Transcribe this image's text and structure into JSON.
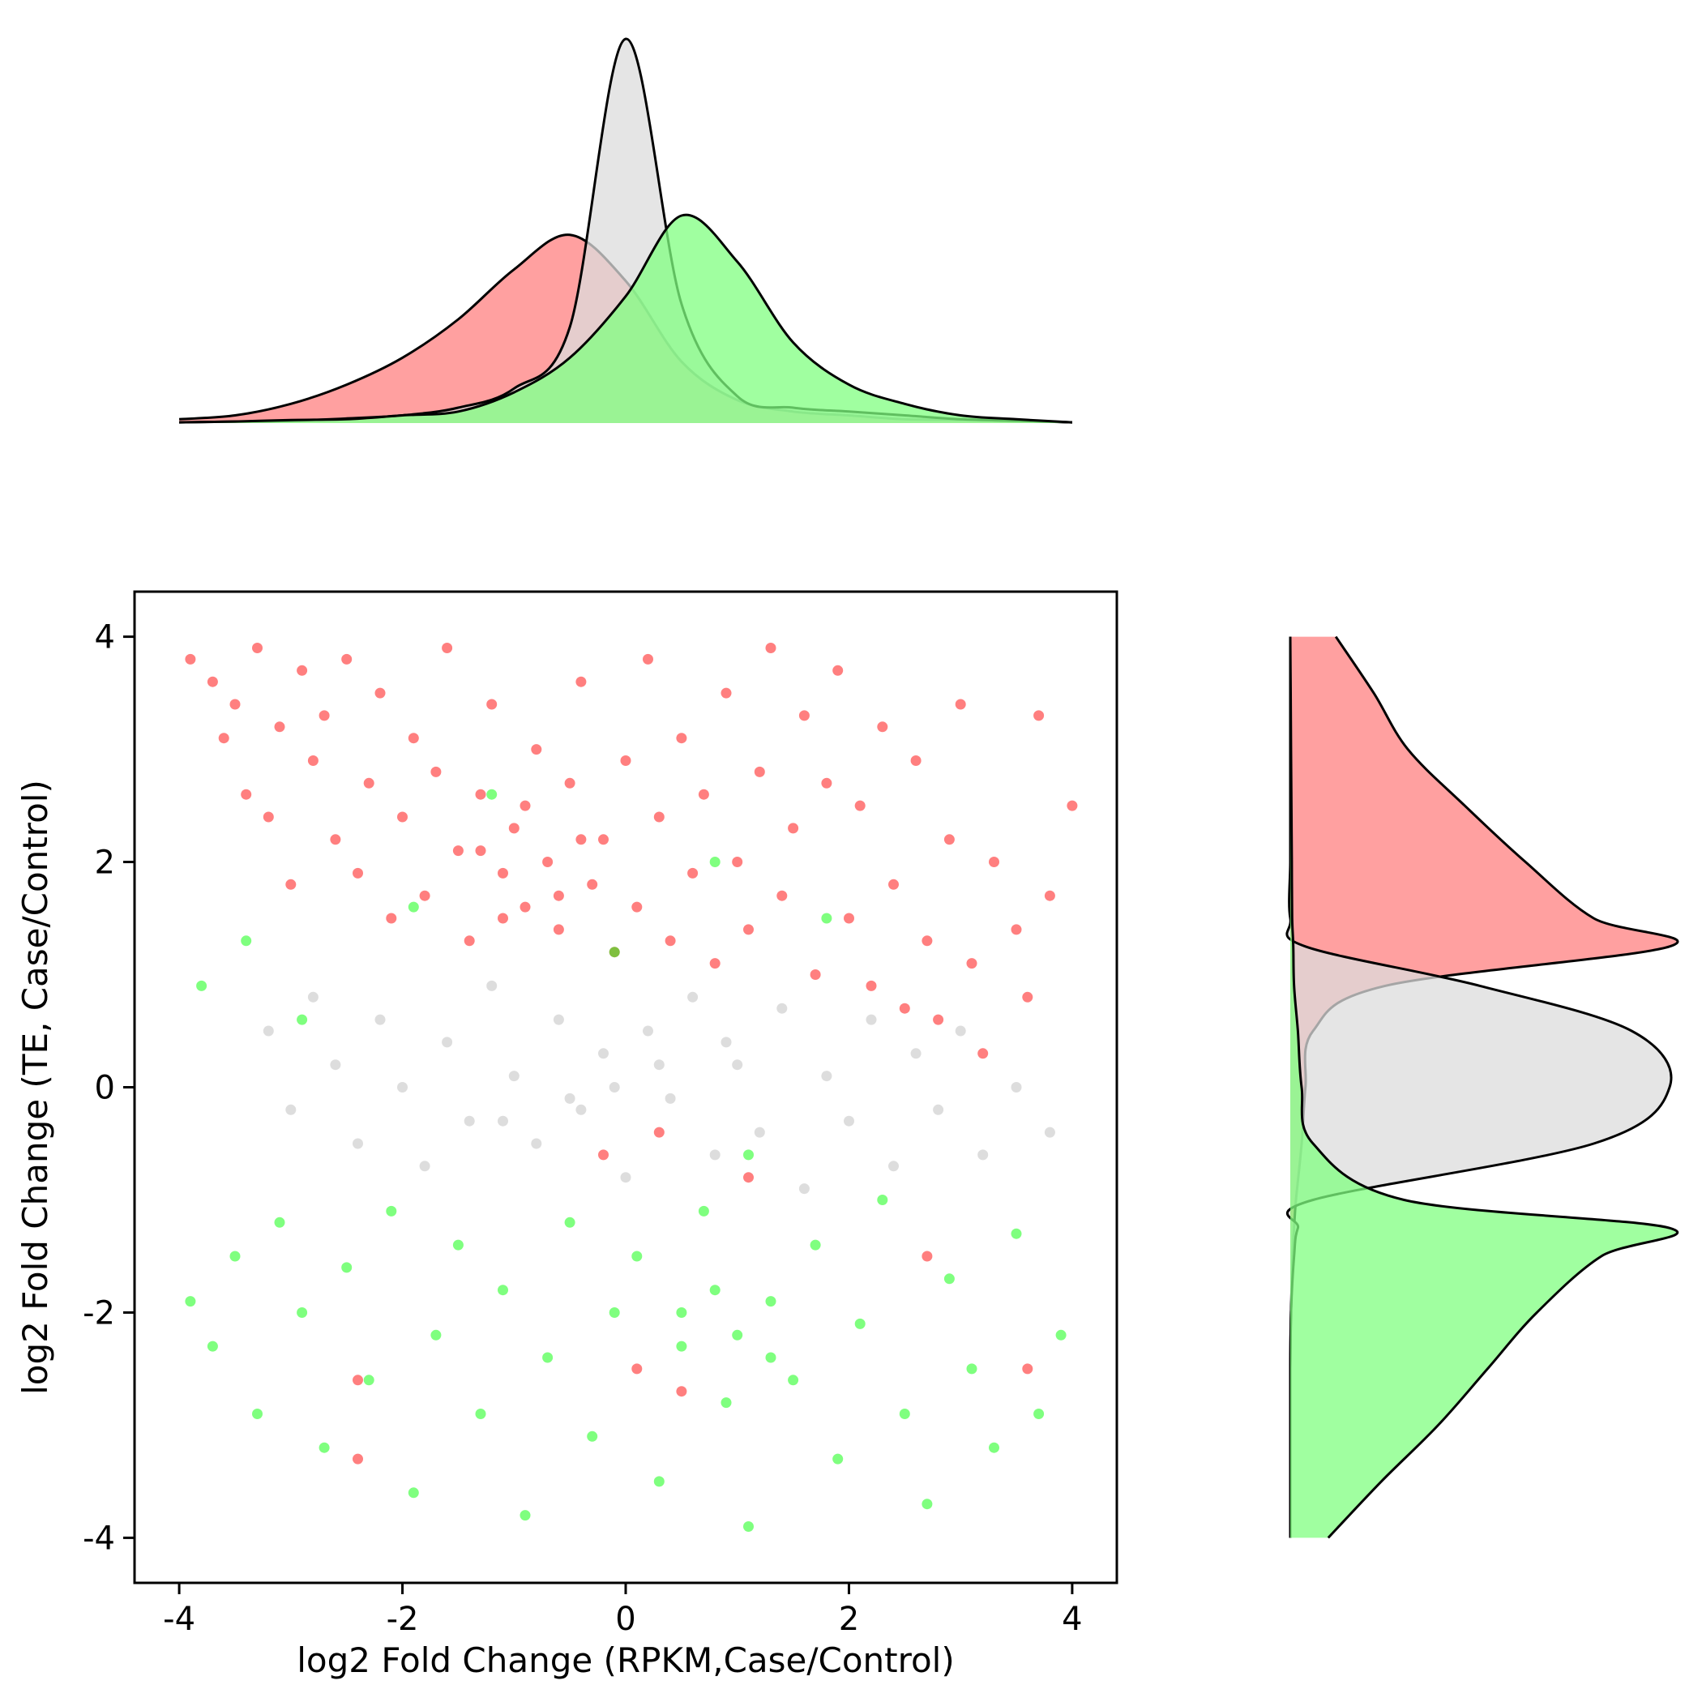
{
  "chart_data": {
    "type": "scatter",
    "title": "",
    "xlabel": "log2 Fold Change (RPKM,Case/Control)",
    "ylabel": "log2 Fold Change (TE, Case/Control)",
    "xlim": [
      -4.4,
      4.4
    ],
    "ylim": [
      -4.4,
      4.4
    ],
    "xticks": [
      -4,
      -2,
      0,
      2,
      4
    ],
    "yticks": [
      -4,
      -2,
      0,
      2,
      4
    ],
    "xtick_labels": [
      "-4",
      "-2",
      "0",
      "2",
      "4"
    ],
    "ytick_labels": [
      "-4",
      "-2",
      "0",
      "2",
      "4"
    ],
    "grid": false,
    "legend": "none",
    "series": [
      {
        "color": "#ff0000",
        "fill": "#ff8080",
        "points": [
          [
            -3.9,
            3.8
          ],
          [
            -3.7,
            3.6
          ],
          [
            -3.6,
            3.1
          ],
          [
            -3.5,
            3.4
          ],
          [
            -3.4,
            2.6
          ],
          [
            -3.3,
            3.9
          ],
          [
            -3.2,
            2.4
          ],
          [
            -3.1,
            3.2
          ],
          [
            -3.0,
            1.8
          ],
          [
            -2.9,
            3.7
          ],
          [
            -2.8,
            2.9
          ],
          [
            -2.7,
            3.3
          ],
          [
            -2.6,
            2.2
          ],
          [
            -2.5,
            3.8
          ],
          [
            -2.4,
            1.9
          ],
          [
            -2.3,
            2.7
          ],
          [
            -2.2,
            3.5
          ],
          [
            -2.1,
            1.5
          ],
          [
            -2.0,
            2.4
          ],
          [
            -1.9,
            3.1
          ],
          [
            -1.8,
            1.7
          ],
          [
            -1.7,
            2.8
          ],
          [
            -1.6,
            3.9
          ],
          [
            -1.5,
            2.1
          ],
          [
            -1.4,
            1.3
          ],
          [
            -1.3,
            2.6
          ],
          [
            -1.2,
            3.4
          ],
          [
            -1.1,
            1.9
          ],
          [
            -1.0,
            2.3
          ],
          [
            -0.9,
            1.6
          ],
          [
            -0.8,
            3.0
          ],
          [
            -0.7,
            2.0
          ],
          [
            -0.6,
            1.4
          ],
          [
            -0.5,
            2.7
          ],
          [
            -0.4,
            3.6
          ],
          [
            -0.3,
            1.8
          ],
          [
            -0.2,
            2.2
          ],
          [
            -0.1,
            1.2
          ],
          [
            0.0,
            2.9
          ],
          [
            0.1,
            1.6
          ],
          [
            0.2,
            3.8
          ],
          [
            0.3,
            2.4
          ],
          [
            0.4,
            1.3
          ],
          [
            0.5,
            3.1
          ],
          [
            0.6,
            1.9
          ],
          [
            0.7,
            2.6
          ],
          [
            0.8,
            1.1
          ],
          [
            0.9,
            3.5
          ],
          [
            1.0,
            2.0
          ],
          [
            1.1,
            1.4
          ],
          [
            1.2,
            2.8
          ],
          [
            1.3,
            3.9
          ],
          [
            1.4,
            1.7
          ],
          [
            1.5,
            2.3
          ],
          [
            1.6,
            3.3
          ],
          [
            1.7,
            1.0
          ],
          [
            1.8,
            2.7
          ],
          [
            1.9,
            3.7
          ],
          [
            2.0,
            1.5
          ],
          [
            2.1,
            2.5
          ],
          [
            2.2,
            0.9
          ],
          [
            2.3,
            3.2
          ],
          [
            2.4,
            1.8
          ],
          [
            2.5,
            0.7
          ],
          [
            2.6,
            2.9
          ],
          [
            2.7,
            1.3
          ],
          [
            2.8,
            0.6
          ],
          [
            2.9,
            2.2
          ],
          [
            3.0,
            3.4
          ],
          [
            3.1,
            1.1
          ],
          [
            3.2,
            0.3
          ],
          [
            3.3,
            2.0
          ],
          [
            3.5,
            1.4
          ],
          [
            3.6,
            0.8
          ],
          [
            3.7,
            3.3
          ],
          [
            3.8,
            1.7
          ],
          [
            4.0,
            2.5
          ],
          [
            0.3,
            -0.4
          ],
          [
            -0.2,
            -0.6
          ],
          [
            1.1,
            -0.8
          ],
          [
            2.7,
            -1.5
          ],
          [
            -2.4,
            -2.6
          ],
          [
            0.1,
            -2.5
          ],
          [
            0.5,
            -2.7
          ],
          [
            3.6,
            -2.5
          ],
          [
            -2.4,
            -3.3
          ],
          [
            -1.3,
            2.1
          ],
          [
            -0.9,
            2.5
          ],
          [
            -0.6,
            1.7
          ],
          [
            -1.1,
            1.5
          ],
          [
            -0.4,
            2.2
          ]
        ]
      },
      {
        "color": "#bbbbbb",
        "fill": "#dcdcdc",
        "points": [
          [
            -3.2,
            0.5
          ],
          [
            -3.0,
            -0.2
          ],
          [
            -2.8,
            0.8
          ],
          [
            -2.6,
            0.2
          ],
          [
            -2.4,
            -0.5
          ],
          [
            -2.2,
            0.6
          ],
          [
            -2.0,
            0.0
          ],
          [
            -1.8,
            -0.7
          ],
          [
            -1.6,
            0.4
          ],
          [
            -1.4,
            -0.3
          ],
          [
            -1.2,
            0.9
          ],
          [
            -1.0,
            0.1
          ],
          [
            -0.8,
            -0.5
          ],
          [
            -0.6,
            0.6
          ],
          [
            -0.4,
            -0.2
          ],
          [
            -0.2,
            0.3
          ],
          [
            0.0,
            -0.8
          ],
          [
            0.2,
            0.5
          ],
          [
            0.4,
            -0.1
          ],
          [
            0.6,
            0.8
          ],
          [
            0.8,
            -0.6
          ],
          [
            1.0,
            0.2
          ],
          [
            1.2,
            -0.4
          ],
          [
            1.4,
            0.7
          ],
          [
            1.6,
            -0.9
          ],
          [
            1.8,
            0.1
          ],
          [
            2.0,
            -0.3
          ],
          [
            2.2,
            0.6
          ],
          [
            2.4,
            -0.7
          ],
          [
            2.6,
            0.3
          ],
          [
            2.8,
            -0.2
          ],
          [
            3.0,
            0.5
          ],
          [
            3.2,
            -0.6
          ],
          [
            3.5,
            0.0
          ],
          [
            3.8,
            -0.4
          ],
          [
            -0.1,
            0.0
          ],
          [
            0.3,
            0.2
          ],
          [
            -0.5,
            -0.1
          ],
          [
            0.9,
            0.4
          ],
          [
            -1.1,
            -0.3
          ]
        ]
      },
      {
        "color": "#00ff00",
        "fill": "#80ff80",
        "points": [
          [
            -3.9,
            -1.9
          ],
          [
            -3.7,
            -2.3
          ],
          [
            -3.5,
            -1.5
          ],
          [
            -3.3,
            -2.9
          ],
          [
            -3.1,
            -1.2
          ],
          [
            -2.9,
            -2.0
          ],
          [
            -2.7,
            -3.2
          ],
          [
            -2.5,
            -1.6
          ],
          [
            -2.3,
            -2.6
          ],
          [
            -2.1,
            -1.1
          ],
          [
            -1.9,
            -3.6
          ],
          [
            -1.7,
            -2.2
          ],
          [
            -1.5,
            -1.4
          ],
          [
            -1.3,
            -2.9
          ],
          [
            -1.1,
            -1.8
          ],
          [
            -0.9,
            -3.8
          ],
          [
            -0.7,
            -2.4
          ],
          [
            -0.5,
            -1.2
          ],
          [
            -0.3,
            -3.1
          ],
          [
            -0.1,
            -2.0
          ],
          [
            0.1,
            -1.5
          ],
          [
            0.3,
            -3.5
          ],
          [
            0.5,
            -2.3
          ],
          [
            0.7,
            -1.1
          ],
          [
            0.9,
            -2.8
          ],
          [
            1.1,
            -3.9
          ],
          [
            1.3,
            -1.9
          ],
          [
            1.5,
            -2.6
          ],
          [
            1.7,
            -1.4
          ],
          [
            1.9,
            -3.3
          ],
          [
            2.1,
            -2.1
          ],
          [
            2.3,
            -1.0
          ],
          [
            2.5,
            -2.9
          ],
          [
            2.7,
            -3.7
          ],
          [
            2.9,
            -1.7
          ],
          [
            3.1,
            -2.5
          ],
          [
            3.3,
            -3.2
          ],
          [
            3.5,
            -1.3
          ],
          [
            3.7,
            -2.9
          ],
          [
            3.9,
            -2.2
          ],
          [
            -3.8,
            0.9
          ],
          [
            -3.4,
            1.3
          ],
          [
            -2.9,
            0.6
          ],
          [
            -1.9,
            1.6
          ],
          [
            -1.2,
            2.6
          ],
          [
            -0.1,
            1.2
          ],
          [
            0.8,
            2.0
          ],
          [
            1.8,
            1.5
          ],
          [
            1.1,
            -0.6
          ],
          [
            0.5,
            -2.0
          ],
          [
            1.0,
            -2.2
          ],
          [
            0.8,
            -1.8
          ],
          [
            1.3,
            -2.4
          ]
        ]
      }
    ],
    "marginal_x": {
      "type": "kde",
      "x": [
        -4.0,
        -3.5,
        -3.0,
        -2.5,
        -2.0,
        -1.5,
        -1.0,
        -0.5,
        0.0,
        0.5,
        1.0,
        1.5,
        2.0,
        2.5,
        3.0,
        3.5,
        4.0
      ],
      "densities": [
        {
          "color": "#ff8080",
          "values": [
            0.01,
            0.02,
            0.05,
            0.1,
            0.17,
            0.27,
            0.4,
            0.49,
            0.37,
            0.16,
            0.06,
            0.03,
            0.02,
            0.01,
            0.008,
            0.006,
            0.002
          ]
        },
        {
          "color": "#dcdcdc",
          "values": [
            0.002,
            0.004,
            0.006,
            0.012,
            0.02,
            0.04,
            0.09,
            0.25,
            1.0,
            0.31,
            0.07,
            0.04,
            0.03,
            0.02,
            0.01,
            0.006,
            0.002
          ]
        },
        {
          "color": "#80ff80",
          "values": [
            0.002,
            0.004,
            0.008,
            0.01,
            0.02,
            0.03,
            0.08,
            0.17,
            0.33,
            0.54,
            0.42,
            0.21,
            0.1,
            0.05,
            0.02,
            0.01,
            0.002
          ]
        }
      ]
    },
    "marginal_y": {
      "type": "kde",
      "y": [
        -4.0,
        -3.5,
        -3.0,
        -2.5,
        -2.0,
        -1.5,
        -1.25,
        -1.0,
        -0.5,
        0.0,
        0.5,
        0.9,
        1.25,
        1.5,
        2.0,
        2.5,
        3.0,
        3.5,
        4.0
      ],
      "densities": [
        {
          "color": "#ff8080",
          "values": [
            0.0,
            0.0,
            0.0,
            0.0,
            0.002,
            0.006,
            0.01,
            0.015,
            0.03,
            0.04,
            0.06,
            0.25,
            1.0,
            0.8,
            0.62,
            0.46,
            0.31,
            0.22,
            0.12
          ]
        },
        {
          "color": "#dcdcdc",
          "values": [
            0.0,
            0.0,
            0.0,
            0.0,
            0.002,
            0.01,
            0.02,
            0.06,
            0.8,
            1.0,
            0.9,
            0.5,
            0.04,
            0.0,
            0.0,
            0.0,
            0.0,
            0.0,
            0.0
          ]
        },
        {
          "color": "#80ff80",
          "values": [
            0.1,
            0.24,
            0.39,
            0.52,
            0.65,
            0.82,
            1.0,
            0.3,
            0.06,
            0.03,
            0.02,
            0.01,
            0.008,
            0.005,
            0.004,
            0.003,
            0.002,
            0.001,
            0.0
          ]
        }
      ]
    }
  }
}
